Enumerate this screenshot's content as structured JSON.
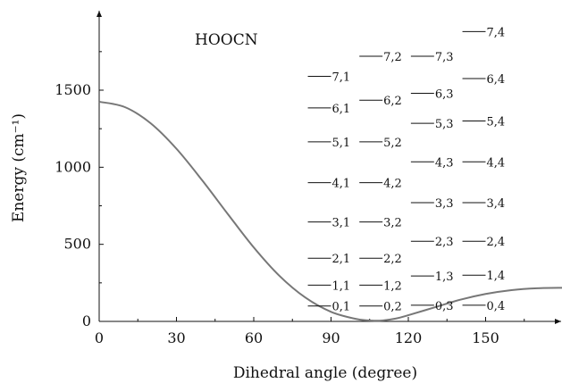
{
  "chart_data": {
    "type": "line",
    "title": "",
    "inset_label": "HOOCN",
    "xlabel": "Dihedral angle (degree)",
    "ylabel": "Energy (cm⁻¹)",
    "xlim": [
      0,
      180
    ],
    "ylim": [
      0,
      1850
    ],
    "x_ticks": [
      0,
      30,
      60,
      90,
      120,
      150
    ],
    "y_ticks": [
      0,
      500,
      1000,
      1500
    ],
    "grid": false,
    "curve_color": "#777777",
    "potential_curve": {
      "x": [
        0,
        10,
        20,
        30,
        40,
        50,
        60,
        70,
        80,
        90,
        100,
        106,
        110,
        115,
        120,
        130,
        140,
        150,
        160,
        170,
        180
      ],
      "y": [
        1425,
        1390,
        1285,
        1120,
        915,
        695,
        480,
        295,
        155,
        62,
        15,
        5,
        6,
        18,
        40,
        90,
        140,
        178,
        203,
        215,
        218
      ]
    },
    "levels": [
      {
        "label": "0,1",
        "x_start": 81,
        "x_end": 90,
        "energy": 100
      },
      {
        "label": "1,1",
        "x_start": 81,
        "x_end": 90,
        "energy": 235
      },
      {
        "label": "2,1",
        "x_start": 81,
        "x_end": 90,
        "energy": 410
      },
      {
        "label": "3,1",
        "x_start": 81,
        "x_end": 90,
        "energy": 645
      },
      {
        "label": "4,1",
        "x_start": 81,
        "x_end": 90,
        "energy": 900
      },
      {
        "label": "5,1",
        "x_start": 81,
        "x_end": 90,
        "energy": 1165
      },
      {
        "label": "6,1",
        "x_start": 81,
        "x_end": 90,
        "energy": 1385
      },
      {
        "label": "7,1",
        "x_start": 81,
        "x_end": 90,
        "energy": 1590
      },
      {
        "label": "0,2",
        "x_start": 101,
        "x_end": 110,
        "energy": 100
      },
      {
        "label": "1,2",
        "x_start": 101,
        "x_end": 110,
        "energy": 235
      },
      {
        "label": "2,2",
        "x_start": 101,
        "x_end": 110,
        "energy": 410
      },
      {
        "label": "3,2",
        "x_start": 101,
        "x_end": 110,
        "energy": 645
      },
      {
        "label": "4,2",
        "x_start": 101,
        "x_end": 110,
        "energy": 900
      },
      {
        "label": "5,2",
        "x_start": 101,
        "x_end": 110,
        "energy": 1165
      },
      {
        "label": "6,2",
        "x_start": 101,
        "x_end": 110,
        "energy": 1435
      },
      {
        "label": "7,2",
        "x_start": 101,
        "x_end": 110,
        "energy": 1720
      },
      {
        "label": "0,3",
        "x_start": 121,
        "x_end": 130,
        "energy": 105
      },
      {
        "label": "1,3",
        "x_start": 121,
        "x_end": 130,
        "energy": 295
      },
      {
        "label": "2,3",
        "x_start": 121,
        "x_end": 130,
        "energy": 520
      },
      {
        "label": "3,3",
        "x_start": 121,
        "x_end": 130,
        "energy": 770
      },
      {
        "label": "4,3",
        "x_start": 121,
        "x_end": 130,
        "energy": 1035
      },
      {
        "label": "5,3",
        "x_start": 121,
        "x_end": 130,
        "energy": 1285
      },
      {
        "label": "6,3",
        "x_start": 121,
        "x_end": 130,
        "energy": 1480
      },
      {
        "label": "7,3",
        "x_start": 121,
        "x_end": 130,
        "energy": 1720
      },
      {
        "label": "0,4",
        "x_start": 141,
        "x_end": 150,
        "energy": 105
      },
      {
        "label": "1,4",
        "x_start": 141,
        "x_end": 150,
        "energy": 300
      },
      {
        "label": "2,4",
        "x_start": 141,
        "x_end": 150,
        "energy": 520
      },
      {
        "label": "3,4",
        "x_start": 141,
        "x_end": 150,
        "energy": 770
      },
      {
        "label": "4,4",
        "x_start": 141,
        "x_end": 150,
        "energy": 1035
      },
      {
        "label": "5,4",
        "x_start": 141,
        "x_end": 150,
        "energy": 1300
      },
      {
        "label": "6,4",
        "x_start": 141,
        "x_end": 150,
        "energy": 1575
      },
      {
        "label": "7,4",
        "x_start": 141,
        "x_end": 150,
        "energy": 1880
      }
    ]
  }
}
